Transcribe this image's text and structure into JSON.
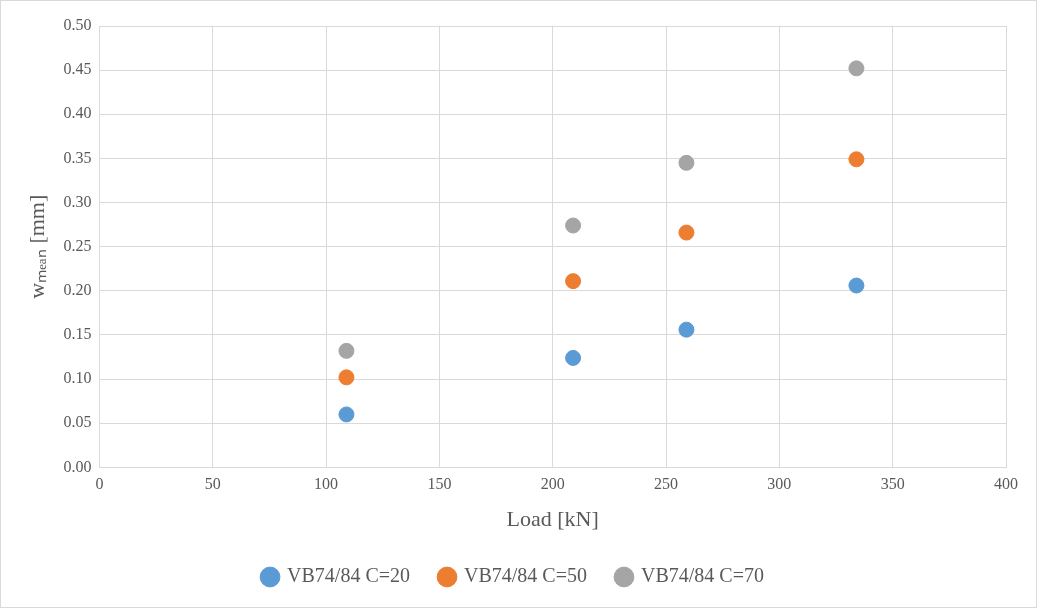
{
  "chart_data": {
    "type": "scatter",
    "xlabel": "Load [kN]",
    "ylabel": "wₘₑₐₙ [mm]",
    "xlim": [
      0,
      400
    ],
    "xticks": [
      0,
      50,
      100,
      150,
      200,
      250,
      300,
      350,
      400
    ],
    "ylim": [
      0,
      0.5
    ],
    "yticks": [
      {
        "value": 0,
        "label": "0.00"
      },
      {
        "value": 0.05,
        "label": "0.05"
      },
      {
        "value": 0.1,
        "label": "0.10"
      },
      {
        "value": 0.15,
        "label": "0.15"
      },
      {
        "value": 0.2,
        "label": "0.20"
      },
      {
        "value": 0.25,
        "label": "0.25"
      },
      {
        "value": 0.3,
        "label": "0.30"
      },
      {
        "value": 0.35,
        "label": "0.35"
      },
      {
        "value": 0.4,
        "label": "0.40"
      },
      {
        "value": 0.45,
        "label": "0.45"
      },
      {
        "value": 0.5,
        "label": "0.50"
      }
    ],
    "x": [
      109,
      209,
      259,
      334
    ],
    "series": [
      {
        "name": "VB74/84 C=20",
        "color": "#5b9bd5",
        "values": [
          0.06,
          0.124,
          0.156,
          0.206
        ]
      },
      {
        "name": "VB74/84 C=50",
        "color": "#ed7d31",
        "values": [
          0.102,
          0.211,
          0.266,
          0.349
        ]
      },
      {
        "name": "VB74/84 C=70",
        "color": "#a5a5a5",
        "values": [
          0.132,
          0.274,
          0.345,
          0.452
        ]
      }
    ],
    "grid": true,
    "legend": "bottom",
    "marker": "circle"
  }
}
